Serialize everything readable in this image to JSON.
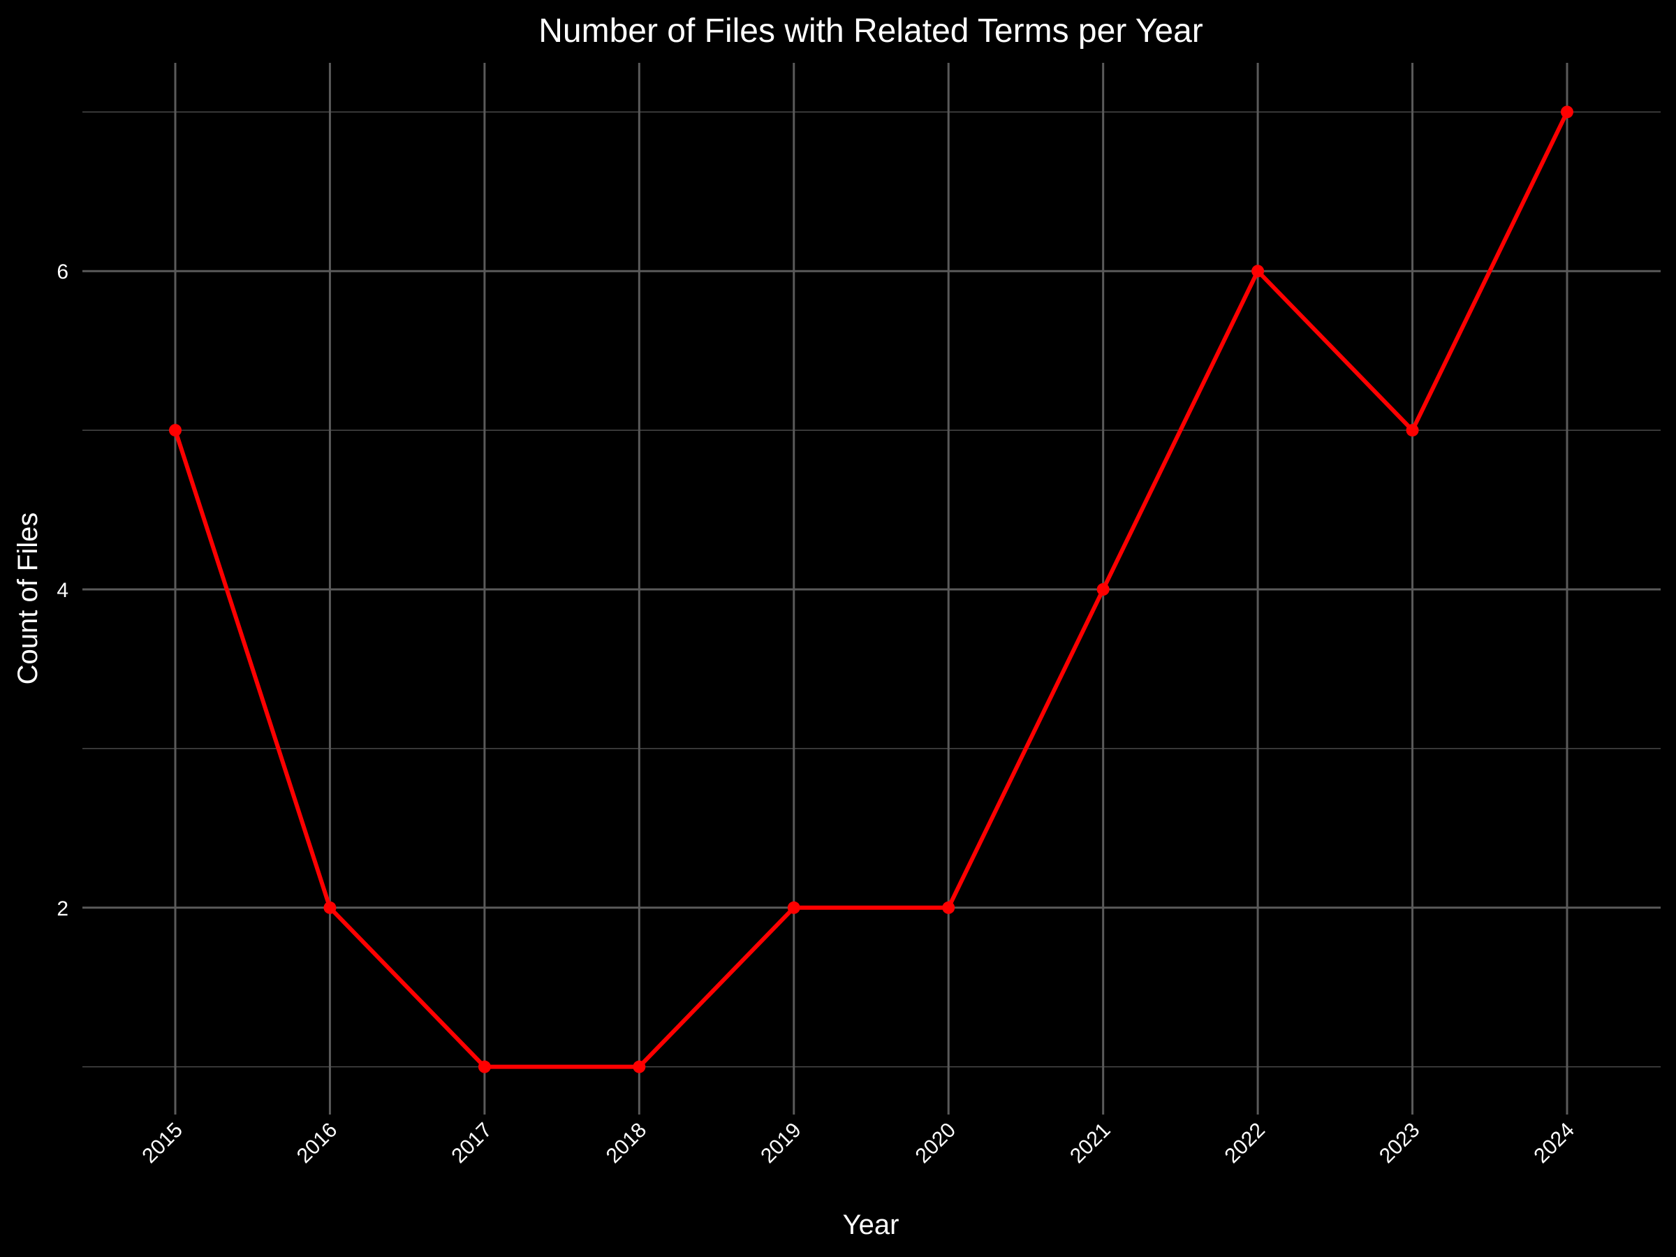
{
  "chart_data": {
    "type": "line",
    "title": "Number of Files with Related Terms per Year",
    "xlabel": "Year",
    "ylabel": "Count of Files",
    "x": [
      "2015",
      "2016",
      "2017",
      "2018",
      "2019",
      "2020",
      "2021",
      "2022",
      "2023",
      "2024"
    ],
    "series": [
      {
        "values": [
          5,
          2,
          1,
          1,
          2,
          2,
          4,
          6,
          5,
          7
        ],
        "color": "#ff0000"
      }
    ],
    "ylim": [
      0.7,
      7.3
    ],
    "yticks": [
      "2",
      "4",
      "6"
    ],
    "grid": true,
    "legend": "none",
    "background": "#000000",
    "grid_color": "#5a5a5a",
    "text_color": "#ffffff"
  }
}
